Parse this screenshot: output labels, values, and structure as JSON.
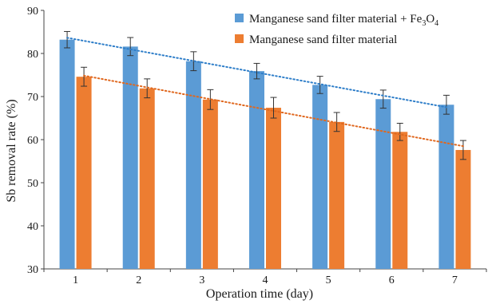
{
  "chart_data": {
    "type": "bar",
    "xlabel": "Operation time (day)",
    "ylabel": "Sb removal rate (%)",
    "ylim": [
      30,
      90
    ],
    "yticks": [
      30,
      40,
      50,
      60,
      70,
      80,
      90
    ],
    "categories": [
      "1",
      "2",
      "3",
      "4",
      "5",
      "6",
      "7"
    ],
    "legend_placement": "top-right",
    "series": [
      {
        "name": "Manganese sand filter material + Fe3O4",
        "name_main": "Manganese sand filter material + Fe",
        "name_sub1": "3",
        "name_mid": "O",
        "name_sub2": "4",
        "color": "#5b9bd5",
        "values": [
          83.2,
          81.6,
          78.2,
          75.9,
          72.7,
          69.4,
          68.1
        ],
        "errors": [
          1.9,
          2.1,
          2.2,
          1.8,
          2.0,
          2.1,
          2.2
        ],
        "trendline": {
          "style": "dotted",
          "color": "#2e7ec9"
        }
      },
      {
        "name": "Manganese sand filter material",
        "color": "#ed7d31",
        "values": [
          74.6,
          71.9,
          69.3,
          67.4,
          64.1,
          61.8,
          57.6
        ],
        "errors": [
          2.2,
          2.2,
          2.3,
          2.4,
          2.2,
          2.0,
          2.2
        ],
        "trendline": {
          "style": "dotted",
          "color": "#e0681f"
        }
      }
    ]
  }
}
